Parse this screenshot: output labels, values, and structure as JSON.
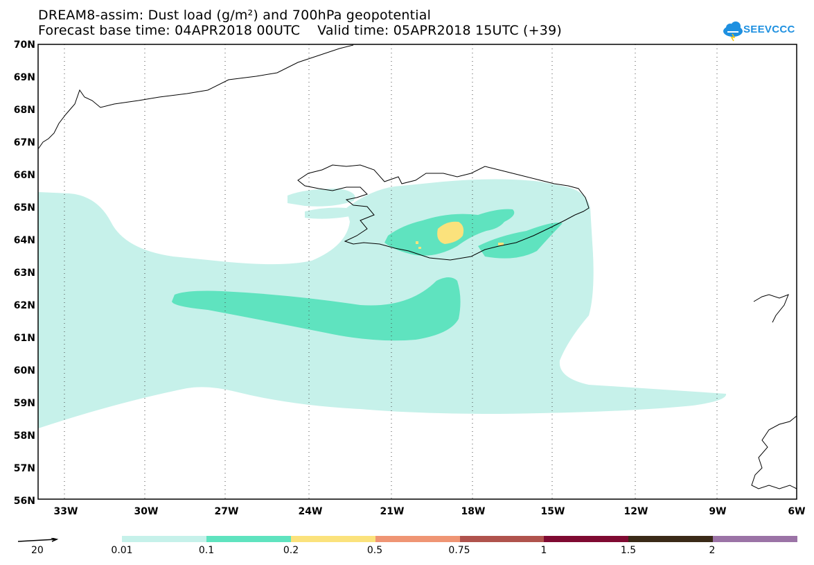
{
  "header": {
    "title_line1": "DREAM8-assim: Dust load (g/m²) and 700hPa geopotential",
    "title_line2": "Forecast base time: 04APR2018 00UTC    Valid time: 05APR2018 15UTC (+39)"
  },
  "logo": {
    "text": "SEEVCCC",
    "icon": "cloud-icon",
    "color": "#1e90e0"
  },
  "map": {
    "lat_labels": [
      "70N",
      "69N",
      "68N",
      "67N",
      "66N",
      "65N",
      "64N",
      "63N",
      "62N",
      "61N",
      "60N",
      "59N",
      "58N",
      "57N",
      "56N"
    ],
    "lon_labels": [
      "33W",
      "30W",
      "27W",
      "24W",
      "21W",
      "18W",
      "15W",
      "12W",
      "9W",
      "6W"
    ],
    "colors": {
      "level1": "#c6f1ea",
      "level2": "#5fe3bf",
      "level3": "#fbe27c",
      "coast": "#000000"
    }
  },
  "legend": {
    "vector_label": "20",
    "bins": [
      {
        "color": "#c6f1ea"
      },
      {
        "color": "#5fe3bf"
      },
      {
        "color": "#fbe27c"
      },
      {
        "color": "#ef9574"
      },
      {
        "color": "#b0534d"
      },
      {
        "color": "#7f0a32"
      },
      {
        "color": "#3a2a17"
      },
      {
        "color": "#9b73a6"
      }
    ],
    "labels": [
      "0.01",
      "0.1",
      "0.2",
      "0.5",
      "0.75",
      "1",
      "1.5",
      "2"
    ]
  }
}
